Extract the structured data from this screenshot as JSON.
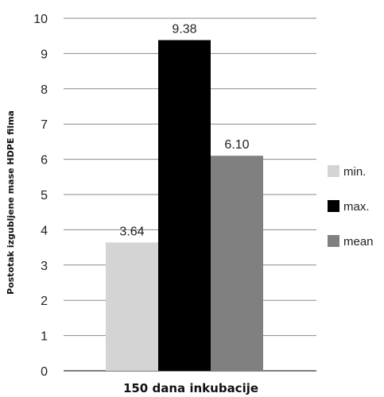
{
  "chart_data": {
    "type": "bar",
    "categories": [
      "150 dana inkubacije"
    ],
    "series": [
      {
        "name": "min.",
        "values": [
          3.64
        ],
        "label": "3.64",
        "color": "#d4d4d4"
      },
      {
        "name": "max.",
        "values": [
          9.38
        ],
        "label": "9.38",
        "color": "#000000"
      },
      {
        "name": "mean",
        "values": [
          6.1
        ],
        "label": "6.10",
        "color": "#808080"
      }
    ],
    "xlabel": "150 dana inkubacije",
    "ylabel": "Postotak izgubljene mase HDPE filma",
    "ylim": [
      0,
      10
    ],
    "yticks": [
      "0",
      "1",
      "2",
      "3",
      "4",
      "5",
      "6",
      "7",
      "8",
      "9",
      "10"
    ],
    "grid": true,
    "legend_position": "right"
  }
}
